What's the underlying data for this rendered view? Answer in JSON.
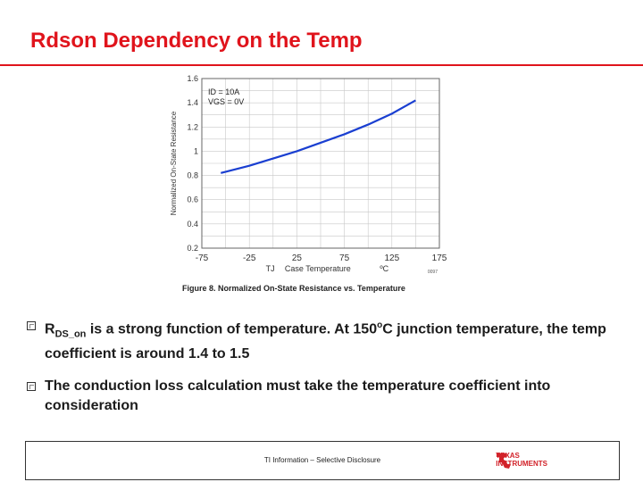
{
  "slide": {
    "title": "Rdson Dependency on the Temp"
  },
  "chart_data": {
    "type": "line",
    "figure_caption": "Figure 8. Normalized On-State Resistance vs. Temperature",
    "ylabel": "Normalized On-State Resistance",
    "xlabel_left": "TJ",
    "xlabel": "Case Temperature",
    "xlabel_unit": "ºC",
    "figure_code": "0097",
    "annotation_lines": [
      "ID = 10A",
      "VGS = 0V"
    ],
    "x_ticks": [
      "-75",
      "-25",
      "25",
      "75",
      "125",
      "175"
    ],
    "x_tick_values": [
      -75,
      -25,
      25,
      75,
      125,
      175
    ],
    "y_ticks": [
      "0.2",
      "0.4",
      "0.6",
      "0.8",
      "1",
      "1.2",
      "1.4",
      "1.6"
    ],
    "y_tick_values": [
      0.2,
      0.4,
      0.6,
      0.8,
      1.0,
      1.2,
      1.4,
      1.6
    ],
    "xlim": [
      -75,
      175
    ],
    "ylim": [
      0.2,
      1.6
    ],
    "grid": true,
    "series": [
      {
        "x": [
          -55,
          -25,
          0,
          25,
          50,
          75,
          100,
          125,
          150
        ],
        "y": [
          0.82,
          0.88,
          0.94,
          1.0,
          1.07,
          1.14,
          1.22,
          1.31,
          1.42
        ],
        "color": "#1a3fd1"
      }
    ]
  },
  "bullets": [
    {
      "main": "R",
      "sub": "DS_on",
      "text1": " is a strong function of temperature. At 150",
      "sup": "o",
      "text2": "C junction temperature, the temp coefficient is around 1.4 to 1.5"
    },
    {
      "text": "The conduction loss calculation must take the temperature coefficient into consideration"
    }
  ],
  "footer": {
    "text": "TI Information – Selective Disclosure",
    "logo_line1": "TEXAS",
    "logo_line2": "INSTRUMENTS",
    "logo_color": "#d2232a"
  }
}
